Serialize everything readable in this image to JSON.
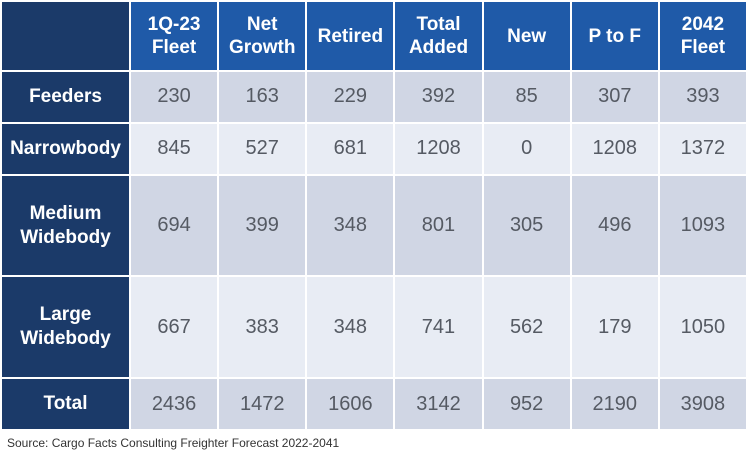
{
  "table": {
    "columns": [
      {
        "line1": "1Q-23",
        "line2": "Fleet"
      },
      {
        "line1": "Net",
        "line2": "Growth"
      },
      {
        "line1": "Retired",
        "line2": ""
      },
      {
        "line1": "Total",
        "line2": "Added"
      },
      {
        "line1": "New",
        "line2": ""
      },
      {
        "line1": "P to F",
        "line2": ""
      },
      {
        "line1": "2042",
        "line2": "Fleet"
      }
    ],
    "rows": [
      {
        "label1": "Feeders",
        "label2": "",
        "values": [
          "230",
          "163",
          "229",
          "392",
          "85",
          "307",
          "393"
        ]
      },
      {
        "label1": "Narrowbody",
        "label2": "",
        "values": [
          "845",
          "527",
          "681",
          "1208",
          "0",
          "1208",
          "1372"
        ]
      },
      {
        "label1": "Medium",
        "label2": "Widebody",
        "values": [
          "694",
          "399",
          "348",
          "801",
          "305",
          "496",
          "1093"
        ]
      },
      {
        "label1": "Large",
        "label2": "Widebody",
        "values": [
          "667",
          "383",
          "348",
          "741",
          "562",
          "179",
          "1050"
        ]
      },
      {
        "label1": "Total",
        "label2": "",
        "values": [
          "2436",
          "1472",
          "1606",
          "3142",
          "952",
          "2190",
          "3908"
        ]
      }
    ]
  },
  "source_note": "Source: Cargo Facts Consulting Freighter Forecast 2022-2041",
  "colors": {
    "corner": "#1b3a69",
    "column_header": "#1f5aa8",
    "row_header": "#1b3a69",
    "row_dark": "#d0d6e4",
    "row_light": "#e8ecf4",
    "cell_text": "#555a63"
  }
}
